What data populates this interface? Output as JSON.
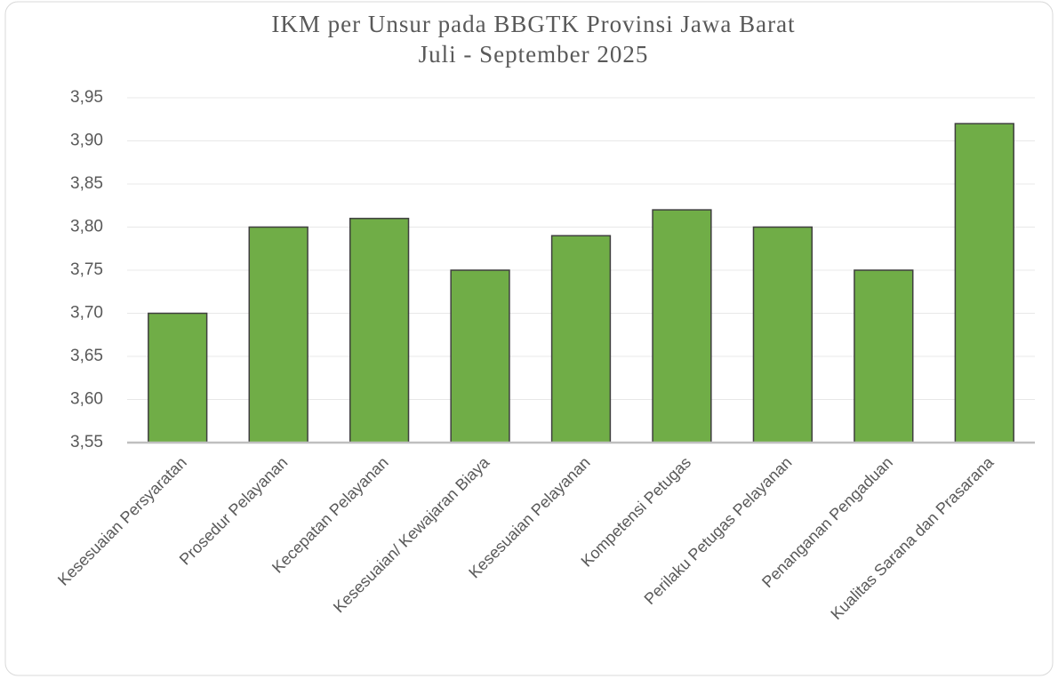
{
  "chart_data": {
    "type": "bar",
    "title": "IKM per Unsur pada BBGTK Provinsi Jawa Barat",
    "subtitle": "Juli - September 2025",
    "categories": [
      "Kesesuaian Persyaratan",
      "Prosedur Pelayanan",
      "Kecepatan Pelayanan",
      "Kesesuaian/ Kewajaran Biaya",
      "Kesesuaian Pelayanan",
      "Kompetensi Petugas",
      "Perilaku Petugas Pelayanan",
      "Penanganan Pengaduan",
      "Kualitas Sarana dan Prasarana"
    ],
    "values": [
      3.7,
      3.8,
      3.81,
      3.75,
      3.79,
      3.82,
      3.8,
      3.75,
      3.92
    ],
    "color": "#70ad47",
    "ylim": [
      3.55,
      3.95
    ],
    "yticks": [
      {
        "value": 3.55,
        "label": "3,55"
      },
      {
        "value": 3.6,
        "label": "3,60"
      },
      {
        "value": 3.65,
        "label": "3,65"
      },
      {
        "value": 3.7,
        "label": "3,70"
      },
      {
        "value": 3.75,
        "label": "3,75"
      },
      {
        "value": 3.8,
        "label": "3,80"
      },
      {
        "value": 3.85,
        "label": "3,85"
      },
      {
        "value": 3.9,
        "label": "3,90"
      },
      {
        "value": 3.95,
        "label": "3,95"
      }
    ],
    "grid": true
  }
}
